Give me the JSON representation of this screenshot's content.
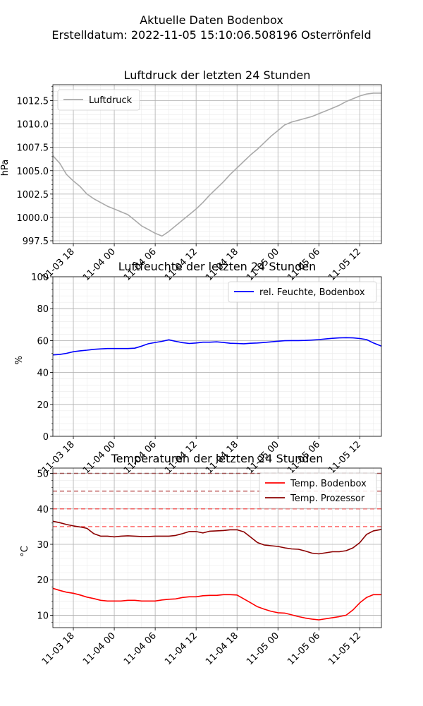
{
  "figure": {
    "title_line1": "Aktuelle Daten Bodenbox",
    "title_line2": "Erstelldatum: 2022-11-05 15:10:06.508196 Osterrönfeld"
  },
  "chart_data": [
    {
      "type": "line",
      "title": "Luftdruck der letzten 24 Stunden",
      "xlabel": "",
      "ylabel": "hPa",
      "x_ticks": [
        "11-03 18",
        "11-04 00",
        "11-04 06",
        "11-04 12",
        "11-04 18",
        "11-05 00",
        "11-05 06",
        "11-05 12"
      ],
      "y_ticks": [
        "997.5",
        "1000.0",
        "1002.5",
        "1005.0",
        "1007.5",
        "1010.0",
        "1012.5"
      ],
      "ylim": [
        997.2,
        1014.2
      ],
      "xlim": [
        "2022-11-03 15:00",
        "2022-11-05 15:10"
      ],
      "grid": true,
      "legend": "upper left",
      "series": [
        {
          "name": "Luftdruck",
          "color": "#aaaaaa",
          "x": [
            "2022-11-03 15:00",
            "2022-11-03 16:00",
            "2022-11-03 17:00",
            "2022-11-03 18:00",
            "2022-11-03 19:00",
            "2022-11-03 20:00",
            "2022-11-03 21:00",
            "2022-11-03 22:00",
            "2022-11-03 23:00",
            "2022-11-04 00:00",
            "2022-11-04 01:00",
            "2022-11-04 02:00",
            "2022-11-04 03:00",
            "2022-11-04 04:00",
            "2022-11-04 05:00",
            "2022-11-04 06:00",
            "2022-11-04 07:00",
            "2022-11-04 08:00",
            "2022-11-04 09:00",
            "2022-11-04 10:00",
            "2022-11-04 11:00",
            "2022-11-04 12:00",
            "2022-11-04 13:00",
            "2022-11-04 14:00",
            "2022-11-04 15:00",
            "2022-11-04 16:00",
            "2022-11-04 17:00",
            "2022-11-04 18:00",
            "2022-11-04 19:00",
            "2022-11-04 20:00",
            "2022-11-04 21:00",
            "2022-11-04 22:00",
            "2022-11-04 23:00",
            "2022-11-05 00:00",
            "2022-11-05 01:00",
            "2022-11-05 02:00",
            "2022-11-05 03:00",
            "2022-11-05 04:00",
            "2022-11-05 05:00",
            "2022-11-05 06:00",
            "2022-11-05 07:00",
            "2022-11-05 08:00",
            "2022-11-05 09:00",
            "2022-11-05 10:00",
            "2022-11-05 11:00",
            "2022-11-05 12:00",
            "2022-11-05 13:00",
            "2022-11-05 14:00",
            "2022-11-05 15:10"
          ],
          "values": [
            1006.6,
            1005.8,
            1004.6,
            1003.9,
            1003.3,
            1002.5,
            1002.0,
            1001.6,
            1001.2,
            1000.9,
            1000.6,
            1000.3,
            999.7,
            999.1,
            998.7,
            998.3,
            998.0,
            998.5,
            999.1,
            999.7,
            1000.3,
            1000.9,
            1001.6,
            1002.4,
            1003.1,
            1003.8,
            1004.6,
            1005.3,
            1006.0,
            1006.7,
            1007.3,
            1008.0,
            1008.7,
            1009.3,
            1009.9,
            1010.2,
            1010.4,
            1010.6,
            1010.8,
            1011.1,
            1011.4,
            1011.7,
            1012.0,
            1012.4,
            1012.7,
            1013.0,
            1013.2,
            1013.3,
            1013.3
          ]
        }
      ]
    },
    {
      "type": "line",
      "title": "Luftfeuchte der letzten 24 Stunden",
      "xlabel": "",
      "ylabel": "%",
      "x_ticks": [
        "11-03 18",
        "11-04 00",
        "11-04 06",
        "11-04 12",
        "11-04 18",
        "11-05 00",
        "11-05 06",
        "11-05 12"
      ],
      "y_ticks": [
        "0",
        "20",
        "40",
        "60",
        "80",
        "100"
      ],
      "ylim": [
        0,
        100
      ],
      "xlim": [
        "2022-11-03 15:00",
        "2022-11-05 15:10"
      ],
      "grid": true,
      "legend": "upper right",
      "series": [
        {
          "name": "rel. Feuchte, Bodenbox",
          "color": "#0000ff",
          "x": [
            "2022-11-03 15:00",
            "2022-11-03 16:00",
            "2022-11-03 17:00",
            "2022-11-03 18:00",
            "2022-11-03 19:00",
            "2022-11-03 20:00",
            "2022-11-03 21:00",
            "2022-11-03 22:00",
            "2022-11-03 23:00",
            "2022-11-04 00:00",
            "2022-11-04 01:00",
            "2022-11-04 02:00",
            "2022-11-04 03:00",
            "2022-11-04 04:00",
            "2022-11-04 05:00",
            "2022-11-04 06:00",
            "2022-11-04 07:00",
            "2022-11-04 08:00",
            "2022-11-04 09:00",
            "2022-11-04 10:00",
            "2022-11-04 11:00",
            "2022-11-04 12:00",
            "2022-11-04 13:00",
            "2022-11-04 14:00",
            "2022-11-04 15:00",
            "2022-11-04 16:00",
            "2022-11-04 17:00",
            "2022-11-04 18:00",
            "2022-11-04 19:00",
            "2022-11-04 20:00",
            "2022-11-04 21:00",
            "2022-11-04 22:00",
            "2022-11-04 23:00",
            "2022-11-05 00:00",
            "2022-11-05 01:00",
            "2022-11-05 02:00",
            "2022-11-05 03:00",
            "2022-11-05 04:00",
            "2022-11-05 05:00",
            "2022-11-05 06:00",
            "2022-11-05 07:00",
            "2022-11-05 08:00",
            "2022-11-05 09:00",
            "2022-11-05 10:00",
            "2022-11-05 11:00",
            "2022-11-05 12:00",
            "2022-11-05 13:00",
            "2022-11-05 14:00",
            "2022-11-05 15:10"
          ],
          "values": [
            51.0,
            51.3,
            52.0,
            53.0,
            53.6,
            54.0,
            54.5,
            54.8,
            55.0,
            55.0,
            55.0,
            55.0,
            55.2,
            56.5,
            58.0,
            58.8,
            59.5,
            60.5,
            59.5,
            58.7,
            58.2,
            58.5,
            59.0,
            59.0,
            59.2,
            58.8,
            58.3,
            58.2,
            58.0,
            58.3,
            58.5,
            58.8,
            59.2,
            59.6,
            59.9,
            60.0,
            60.0,
            60.1,
            60.3,
            60.6,
            61.0,
            61.4,
            61.7,
            61.8,
            61.7,
            61.3,
            60.6,
            58.5,
            56.5
          ]
        }
      ]
    },
    {
      "type": "line",
      "title": "Temperaturen der letzten 24 Stunden",
      "xlabel": "",
      "ylabel": "°C",
      "x_ticks": [
        "11-03 18",
        "11-04 00",
        "11-04 06",
        "11-04 12",
        "11-04 18",
        "11-05 00",
        "11-05 06",
        "11-05 12"
      ],
      "y_ticks": [
        "10",
        "20",
        "30",
        "40",
        "50"
      ],
      "ylim": [
        6.5,
        51.5
      ],
      "xlim": [
        "2022-11-03 15:00",
        "2022-11-05 15:10"
      ],
      "grid": true,
      "legend": "upper right",
      "reference_lines": [
        {
          "y": 35,
          "color": "#ff6b6b"
        },
        {
          "y": 40,
          "color": "#f06060"
        },
        {
          "y": 45,
          "color": "#c06060"
        },
        {
          "y": 50,
          "color": "#a05555"
        }
      ],
      "series": [
        {
          "name": "Temp. Bodenbox",
          "color": "#ff0000",
          "x": [
            "2022-11-03 15:00",
            "2022-11-03 16:00",
            "2022-11-03 17:00",
            "2022-11-03 18:00",
            "2022-11-03 19:00",
            "2022-11-03 20:00",
            "2022-11-03 21:00",
            "2022-11-03 22:00",
            "2022-11-03 23:00",
            "2022-11-04 00:00",
            "2022-11-04 01:00",
            "2022-11-04 02:00",
            "2022-11-04 03:00",
            "2022-11-04 04:00",
            "2022-11-04 05:00",
            "2022-11-04 06:00",
            "2022-11-04 07:00",
            "2022-11-04 08:00",
            "2022-11-04 09:00",
            "2022-11-04 10:00",
            "2022-11-04 11:00",
            "2022-11-04 12:00",
            "2022-11-04 13:00",
            "2022-11-04 14:00",
            "2022-11-04 15:00",
            "2022-11-04 16:00",
            "2022-11-04 17:00",
            "2022-11-04 18:00",
            "2022-11-04 19:00",
            "2022-11-04 20:00",
            "2022-11-04 21:00",
            "2022-11-04 22:00",
            "2022-11-04 23:00",
            "2022-11-05 00:00",
            "2022-11-05 01:00",
            "2022-11-05 02:00",
            "2022-11-05 03:00",
            "2022-11-05 04:00",
            "2022-11-05 05:00",
            "2022-11-05 06:00",
            "2022-11-05 07:00",
            "2022-11-05 08:00",
            "2022-11-05 09:00",
            "2022-11-05 10:00",
            "2022-11-05 11:00",
            "2022-11-05 12:00",
            "2022-11-05 13:00",
            "2022-11-05 14:00",
            "2022-11-05 15:10"
          ],
          "values": [
            17.6,
            17.0,
            16.5,
            16.2,
            15.7,
            15.1,
            14.7,
            14.2,
            14.0,
            14.0,
            14.0,
            14.2,
            14.2,
            14.0,
            14.0,
            14.0,
            14.3,
            14.5,
            14.6,
            15.0,
            15.2,
            15.2,
            15.5,
            15.6,
            15.6,
            15.8,
            15.8,
            15.7,
            14.6,
            13.5,
            12.4,
            11.7,
            11.1,
            10.7,
            10.6,
            10.1,
            9.6,
            9.2,
            8.9,
            8.7,
            9.0,
            9.3,
            9.6,
            10.0,
            11.5,
            13.5,
            15.0,
            15.8,
            15.8
          ]
        },
        {
          "name": "Temp. Prozessor",
          "color": "#8b0000",
          "x": [
            "2022-11-03 15:00",
            "2022-11-03 16:00",
            "2022-11-03 17:00",
            "2022-11-03 18:00",
            "2022-11-03 19:00",
            "2022-11-03 20:00",
            "2022-11-03 21:00",
            "2022-11-03 22:00",
            "2022-11-03 23:00",
            "2022-11-04 00:00",
            "2022-11-04 01:00",
            "2022-11-04 02:00",
            "2022-11-04 03:00",
            "2022-11-04 04:00",
            "2022-11-04 05:00",
            "2022-11-04 06:00",
            "2022-11-04 07:00",
            "2022-11-04 08:00",
            "2022-11-04 09:00",
            "2022-11-04 10:00",
            "2022-11-04 11:00",
            "2022-11-04 12:00",
            "2022-11-04 13:00",
            "2022-11-04 14:00",
            "2022-11-04 15:00",
            "2022-11-04 16:00",
            "2022-11-04 17:00",
            "2022-11-04 18:00",
            "2022-11-04 19:00",
            "2022-11-04 20:00",
            "2022-11-04 21:00",
            "2022-11-04 22:00",
            "2022-11-04 23:00",
            "2022-11-05 00:00",
            "2022-11-05 01:00",
            "2022-11-05 02:00",
            "2022-11-05 03:00",
            "2022-11-05 04:00",
            "2022-11-05 05:00",
            "2022-11-05 06:00",
            "2022-11-05 07:00",
            "2022-11-05 08:00",
            "2022-11-05 09:00",
            "2022-11-05 10:00",
            "2022-11-05 11:00",
            "2022-11-05 12:00",
            "2022-11-05 13:00",
            "2022-11-05 14:00",
            "2022-11-05 15:10"
          ],
          "values": [
            36.5,
            36.1,
            35.6,
            35.2,
            34.9,
            34.5,
            33.0,
            32.3,
            32.3,
            32.1,
            32.3,
            32.4,
            32.3,
            32.2,
            32.2,
            32.3,
            32.3,
            32.3,
            32.5,
            33.0,
            33.6,
            33.6,
            33.2,
            33.7,
            33.8,
            33.9,
            34.1,
            34.1,
            33.5,
            32.0,
            30.5,
            29.8,
            29.6,
            29.4,
            29.0,
            28.7,
            28.6,
            28.1,
            27.5,
            27.3,
            27.6,
            27.9,
            27.9,
            28.2,
            29.0,
            30.5,
            32.8,
            33.8,
            34.2
          ]
        }
      ]
    }
  ]
}
